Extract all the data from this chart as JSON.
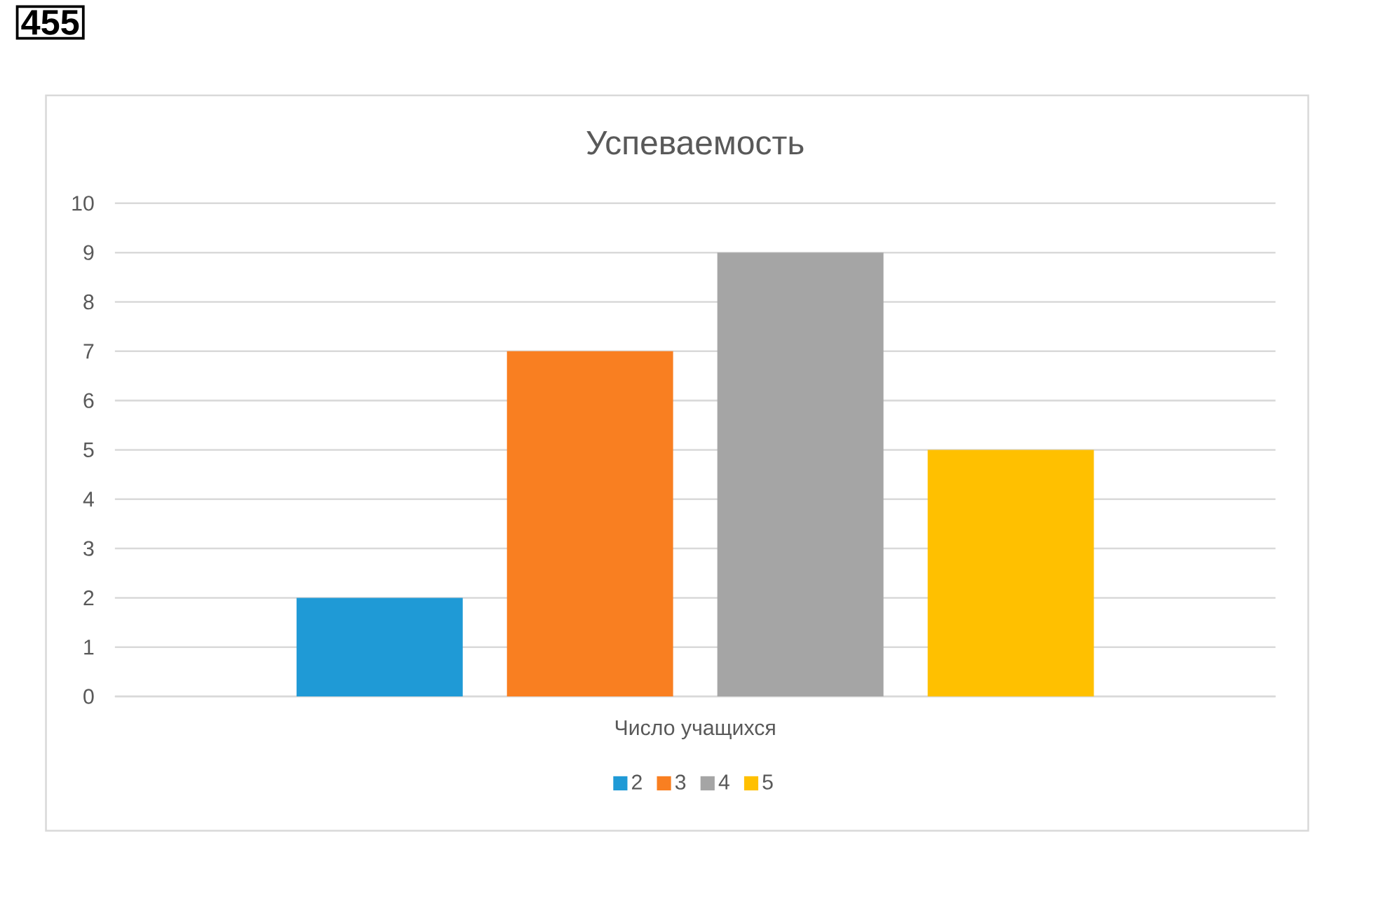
{
  "chart_data": {
    "type": "bar",
    "title": "Успеваемость",
    "categories": [
      "Число учащихся"
    ],
    "series": [
      {
        "name": "2",
        "color": "#1f9ad6",
        "values": [
          2
        ]
      },
      {
        "name": "3",
        "color": "#f97f21",
        "values": [
          7
        ]
      },
      {
        "name": "4",
        "color": "#a5a5a5",
        "values": [
          9
        ]
      },
      {
        "name": "5",
        "color": "#ffc000",
        "values": [
          5
        ]
      }
    ],
    "ylim": [
      0,
      10
    ],
    "yticks": [
      0,
      1,
      2,
      3,
      4,
      5,
      6,
      7,
      8,
      9,
      10
    ],
    "grid": "y",
    "legend": "bottom",
    "annotations": [
      "455"
    ]
  }
}
